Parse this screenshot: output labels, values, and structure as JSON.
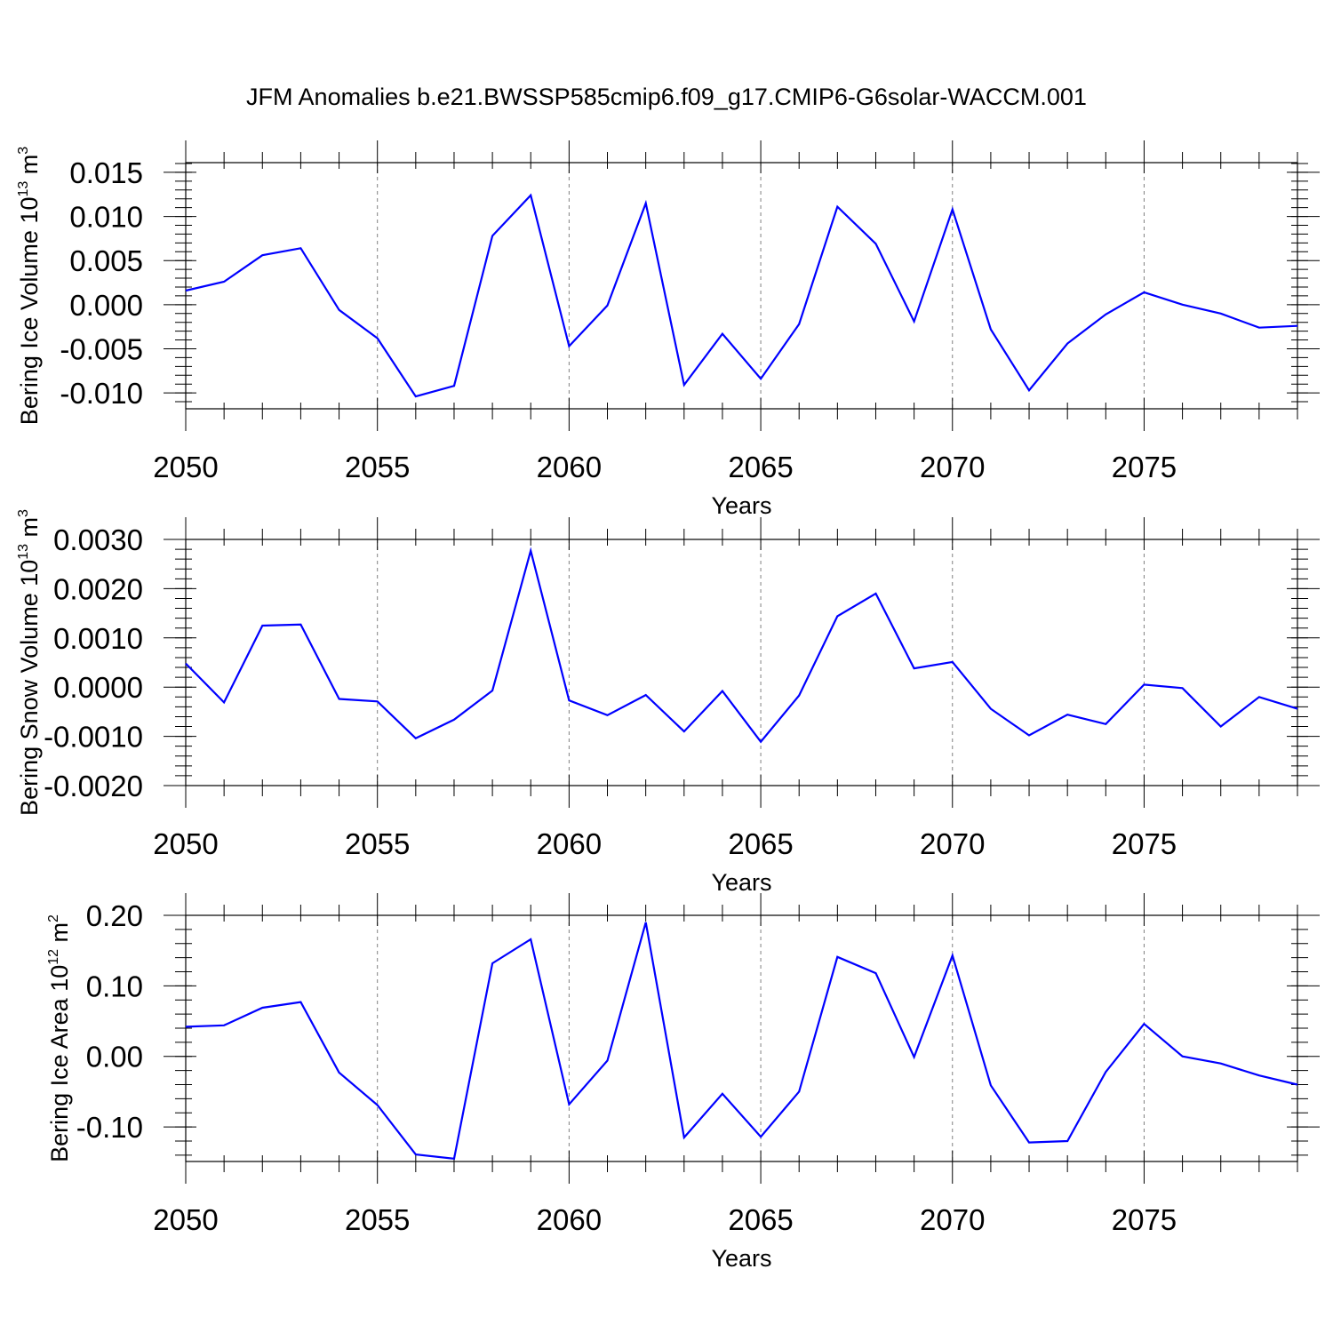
{
  "title": "JFM Anomalies b.e21.BWSSP585cmip6.f09_g17.CMIP6-G6solar-WACCM.001",
  "colors": {
    "series": "#0000ff",
    "axis": "#000000",
    "grid": "#808080"
  },
  "chart_data": [
    {
      "type": "line",
      "ylabel_main": "Bering Ice Volume 10",
      "ylabel_exp": "13",
      "ylabel_unit": " m",
      "ylabel_unit_exp": "3",
      "xlabel": "Years",
      "x": [
        2050,
        2051,
        2052,
        2053,
        2054,
        2055,
        2056,
        2057,
        2058,
        2059,
        2060,
        2061,
        2062,
        2063,
        2064,
        2065,
        2066,
        2067,
        2068,
        2069,
        2070,
        2071,
        2072,
        2073,
        2074,
        2075,
        2076,
        2077,
        2078,
        2079
      ],
      "values": [
        0.0016,
        0.0026,
        0.0056,
        0.0064,
        -0.0006,
        -0.0038,
        -0.0104,
        -0.0092,
        0.0078,
        0.0124,
        -0.0047,
        -0.0001,
        0.0115,
        -0.0091,
        -0.0033,
        -0.0084,
        -0.0022,
        0.0111,
        0.0069,
        -0.0019,
        0.0108,
        -0.0028,
        -0.0097,
        -0.0044,
        -0.0011,
        0.0014,
        0.0,
        -0.001,
        -0.0026,
        -0.0024
      ],
      "xlim": [
        2050,
        2079
      ],
      "ylim": [
        -0.0118,
        0.0161
      ],
      "xticks": [
        2050,
        2055,
        2060,
        2065,
        2070,
        2075
      ],
      "xtick_labels": [
        "2050",
        "2055",
        "2060",
        "2065",
        "2070",
        "2075"
      ],
      "yticks": [
        0.015,
        0.01,
        0.005,
        0.0,
        -0.005,
        -0.01
      ],
      "ytick_labels": [
        "0.015",
        "0.010",
        "0.005",
        "0.000",
        "-0.005",
        "-0.010"
      ],
      "yminor_step": 0.001
    },
    {
      "type": "line",
      "ylabel_main": "Bering Snow Volume 10",
      "ylabel_exp": "13",
      "ylabel_unit": " m",
      "ylabel_unit_exp": "3",
      "xlabel": "Years",
      "x": [
        2050,
        2051,
        2052,
        2053,
        2054,
        2055,
        2056,
        2057,
        2058,
        2059,
        2060,
        2061,
        2062,
        2063,
        2064,
        2065,
        2066,
        2067,
        2068,
        2069,
        2070,
        2071,
        2072,
        2073,
        2074,
        2075,
        2076,
        2077,
        2078,
        2079
      ],
      "values": [
        0.00048,
        -0.00031,
        0.00125,
        0.00127,
        -0.00024,
        -0.00029,
        -0.00104,
        -0.00066,
        -7e-05,
        0.00277,
        -0.00027,
        -0.00057,
        -0.00016,
        -0.0009,
        -8e-05,
        -0.00111,
        -0.00017,
        0.00144,
        0.0019,
        0.00038,
        0.00051,
        -0.00044,
        -0.00098,
        -0.00056,
        -0.00075,
        5e-05,
        -2e-05,
        -0.0008,
        -0.0002,
        -0.00044
      ],
      "xlim": [
        2050,
        2079
      ],
      "ylim": [
        -0.002,
        0.003
      ],
      "xticks": [
        2050,
        2055,
        2060,
        2065,
        2070,
        2075
      ],
      "xtick_labels": [
        "2050",
        "2055",
        "2060",
        "2065",
        "2070",
        "2075"
      ],
      "yticks": [
        0.003,
        0.002,
        0.001,
        0.0,
        -0.001,
        -0.002
      ],
      "ytick_labels": [
        "0.0030",
        "0.0020",
        "0.0010",
        "0.0000",
        "-0.0010",
        "-0.0020"
      ],
      "yminor_step": 0.0002
    },
    {
      "type": "line",
      "ylabel_main": "Bering Ice Area 10",
      "ylabel_exp": "12",
      "ylabel_unit": " m",
      "ylabel_unit_exp": "2",
      "xlabel": "Years",
      "x": [
        2050,
        2051,
        2052,
        2053,
        2054,
        2055,
        2056,
        2057,
        2058,
        2059,
        2060,
        2061,
        2062,
        2063,
        2064,
        2065,
        2066,
        2067,
        2068,
        2069,
        2070,
        2071,
        2072,
        2073,
        2074,
        2075,
        2076,
        2077,
        2078,
        2079
      ],
      "values": [
        0.042,
        0.044,
        0.069,
        0.077,
        -0.023,
        -0.069,
        -0.139,
        -0.145,
        0.132,
        0.166,
        -0.068,
        -0.006,
        0.19,
        -0.115,
        -0.053,
        -0.114,
        -0.05,
        0.141,
        0.118,
        -0.001,
        0.143,
        -0.041,
        -0.122,
        -0.12,
        -0.022,
        0.046,
        0.0,
        -0.01,
        -0.027,
        -0.04
      ],
      "xlim": [
        2050,
        2079
      ],
      "ylim": [
        -0.149,
        0.2
      ],
      "xticks": [
        2050,
        2055,
        2060,
        2065,
        2070,
        2075
      ],
      "xtick_labels": [
        "2050",
        "2055",
        "2060",
        "2065",
        "2070",
        "2075"
      ],
      "yticks": [
        0.2,
        0.1,
        0.0,
        -0.1
      ],
      "ytick_labels": [
        "0.20",
        "0.10",
        "0.00",
        "-0.10"
      ],
      "yminor_step": 0.02
    }
  ]
}
